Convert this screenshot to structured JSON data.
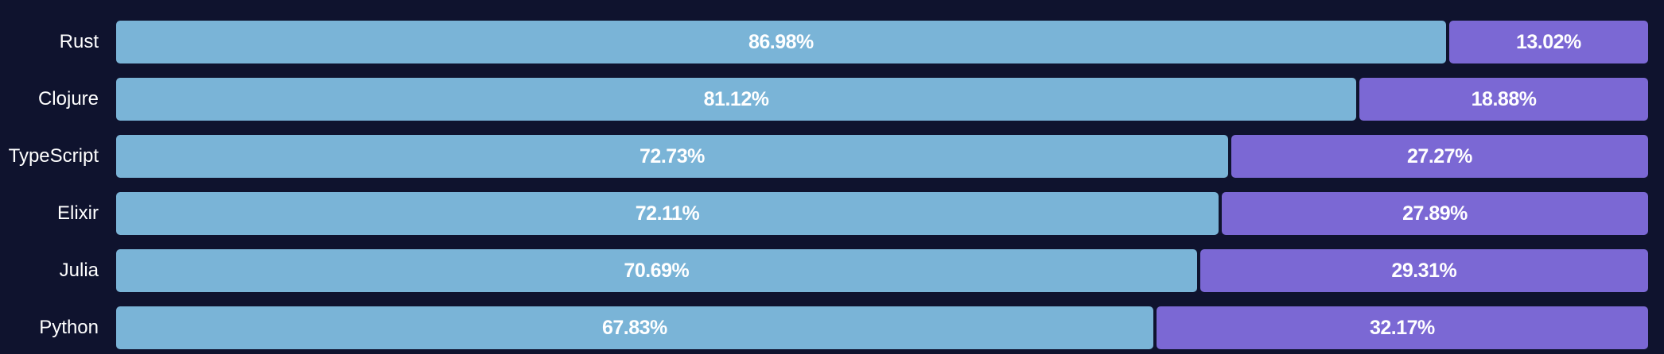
{
  "chart_data": {
    "type": "bar",
    "orientation": "horizontal",
    "stacked": true,
    "normalized_percent": true,
    "categories": [
      "Rust",
      "Clojure",
      "TypeScript",
      "Elixir",
      "Julia",
      "Python"
    ],
    "series": [
      {
        "values": [
          86.98,
          81.12,
          72.73,
          72.11,
          70.69,
          67.83
        ],
        "labels": [
          "86.98%",
          "81.12%",
          "72.73%",
          "72.11%",
          "70.69%",
          "67.83%"
        ],
        "color": "#7ab4d7"
      },
      {
        "values": [
          13.02,
          18.88,
          27.27,
          27.89,
          29.31,
          32.17
        ],
        "labels": [
          "13.02%",
          "18.88%",
          "27.27%",
          "27.89%",
          "29.31%",
          "32.17%"
        ],
        "color": "#7b68d4"
      }
    ],
    "xlim": [
      0,
      100
    ],
    "background": "#0f132e",
    "label_color": "#ffffff"
  }
}
